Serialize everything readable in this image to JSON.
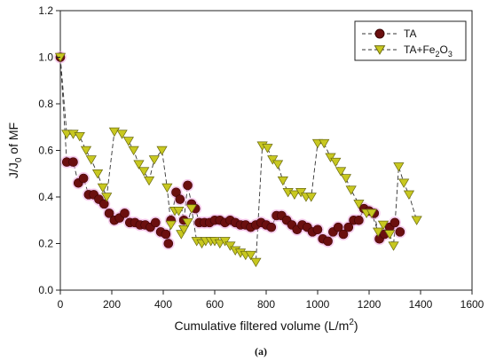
{
  "chart_data": {
    "type": "scatter",
    "xlabel": "Cumulative filtered volume (L/m",
    "xlabel_sup": "2",
    "xlabel_end": ")",
    "ylabel_J": "J/J",
    "ylabel_sub": "0",
    "ylabel_rest": " of MF",
    "caption": "(a)",
    "xlim": [
      0,
      1600
    ],
    "ylim": [
      0,
      1.2
    ],
    "xticks": [
      "0",
      "200",
      "400",
      "600",
      "800",
      "1000",
      "1200",
      "1400",
      "1600"
    ],
    "yticks": [
      "0.0",
      "0.2",
      "0.4",
      "0.6",
      "0.8",
      "1.0",
      "1.2"
    ],
    "legend_position": "top-right",
    "colors": {
      "ta_fill": "#6b0f0f",
      "ta_halo": "#f0a8e0",
      "fe_fill": "#c8c820",
      "fe_stroke": "#6b6b10",
      "line": "#333333"
    },
    "series": [
      {
        "id": "ta",
        "name": "TA",
        "marker": "circle",
        "points": [
          [
            0,
            1.0
          ],
          [
            25,
            0.55
          ],
          [
            50,
            0.55
          ],
          [
            70,
            0.46
          ],
          [
            90,
            0.48
          ],
          [
            110,
            0.41
          ],
          [
            130,
            0.41
          ],
          [
            150,
            0.39
          ],
          [
            170,
            0.37
          ],
          [
            190,
            0.33
          ],
          [
            210,
            0.3
          ],
          [
            230,
            0.31
          ],
          [
            250,
            0.33
          ],
          [
            270,
            0.29
          ],
          [
            290,
            0.29
          ],
          [
            310,
            0.28
          ],
          [
            330,
            0.28
          ],
          [
            350,
            0.27
          ],
          [
            370,
            0.29
          ],
          [
            390,
            0.25
          ],
          [
            410,
            0.24
          ],
          [
            420,
            0.2
          ],
          [
            430,
            0.3
          ],
          [
            450,
            0.42
          ],
          [
            465,
            0.39
          ],
          [
            480,
            0.3
          ],
          [
            495,
            0.45
          ],
          [
            510,
            0.37
          ],
          [
            525,
            0.35
          ],
          [
            540,
            0.29
          ],
          [
            560,
            0.29
          ],
          [
            580,
            0.29
          ],
          [
            600,
            0.3
          ],
          [
            620,
            0.3
          ],
          [
            640,
            0.29
          ],
          [
            660,
            0.3
          ],
          [
            680,
            0.29
          ],
          [
            700,
            0.28
          ],
          [
            720,
            0.28
          ],
          [
            740,
            0.27
          ],
          [
            760,
            0.28
          ],
          [
            780,
            0.29
          ],
          [
            800,
            0.28
          ],
          [
            820,
            0.27
          ],
          [
            840,
            0.32
          ],
          [
            860,
            0.32
          ],
          [
            880,
            0.3
          ],
          [
            900,
            0.28
          ],
          [
            920,
            0.26
          ],
          [
            940,
            0.28
          ],
          [
            960,
            0.27
          ],
          [
            980,
            0.25
          ],
          [
            1000,
            0.26
          ],
          [
            1020,
            0.22
          ],
          [
            1040,
            0.21
          ],
          [
            1060,
            0.25
          ],
          [
            1080,
            0.27
          ],
          [
            1100,
            0.24
          ],
          [
            1120,
            0.27
          ],
          [
            1140,
            0.3
          ],
          [
            1160,
            0.3
          ],
          [
            1180,
            0.35
          ],
          [
            1200,
            0.34
          ],
          [
            1220,
            0.33
          ],
          [
            1240,
            0.22
          ],
          [
            1260,
            0.24
          ],
          [
            1280,
            0.27
          ],
          [
            1300,
            0.29
          ],
          [
            1320,
            0.25
          ]
        ]
      },
      {
        "id": "fe",
        "name_main": "TA+Fe",
        "name_sub": "2",
        "name_mid": "O",
        "name_sub2": "3",
        "marker": "triangle-down",
        "points": [
          [
            0,
            1.0
          ],
          [
            25,
            0.67
          ],
          [
            50,
            0.67
          ],
          [
            75,
            0.66
          ],
          [
            100,
            0.6
          ],
          [
            120,
            0.56
          ],
          [
            145,
            0.5
          ],
          [
            165,
            0.44
          ],
          [
            180,
            0.4
          ],
          [
            210,
            0.68
          ],
          [
            240,
            0.67
          ],
          [
            265,
            0.64
          ],
          [
            285,
            0.6
          ],
          [
            305,
            0.54
          ],
          [
            325,
            0.51
          ],
          [
            345,
            0.47
          ],
          [
            365,
            0.56
          ],
          [
            395,
            0.6
          ],
          [
            415,
            0.44
          ],
          [
            430,
            0.28
          ],
          [
            445,
            0.34
          ],
          [
            460,
            0.34
          ],
          [
            470,
            0.24
          ],
          [
            480,
            0.26
          ],
          [
            495,
            0.29
          ],
          [
            510,
            0.35
          ],
          [
            530,
            0.21
          ],
          [
            550,
            0.2
          ],
          [
            565,
            0.21
          ],
          [
            585,
            0.21
          ],
          [
            600,
            0.21
          ],
          [
            620,
            0.2
          ],
          [
            640,
            0.21
          ],
          [
            660,
            0.19
          ],
          [
            680,
            0.17
          ],
          [
            700,
            0.16
          ],
          [
            720,
            0.15
          ],
          [
            740,
            0.15
          ],
          [
            760,
            0.12
          ],
          [
            785,
            0.62
          ],
          [
            805,
            0.61
          ],
          [
            825,
            0.56
          ],
          [
            845,
            0.54
          ],
          [
            865,
            0.47
          ],
          [
            885,
            0.42
          ],
          [
            910,
            0.41
          ],
          [
            935,
            0.42
          ],
          [
            955,
            0.4
          ],
          [
            975,
            0.4
          ],
          [
            1000,
            0.63
          ],
          [
            1025,
            0.63
          ],
          [
            1050,
            0.57
          ],
          [
            1070,
            0.55
          ],
          [
            1090,
            0.51
          ],
          [
            1110,
            0.48
          ],
          [
            1130,
            0.43
          ],
          [
            1160,
            0.37
          ],
          [
            1190,
            0.33
          ],
          [
            1210,
            0.33
          ],
          [
            1235,
            0.25
          ],
          [
            1255,
            0.28
          ],
          [
            1280,
            0.24
          ],
          [
            1295,
            0.19
          ],
          [
            1315,
            0.53
          ],
          [
            1335,
            0.46
          ],
          [
            1355,
            0.41
          ],
          [
            1385,
            0.3
          ]
        ]
      }
    ]
  }
}
